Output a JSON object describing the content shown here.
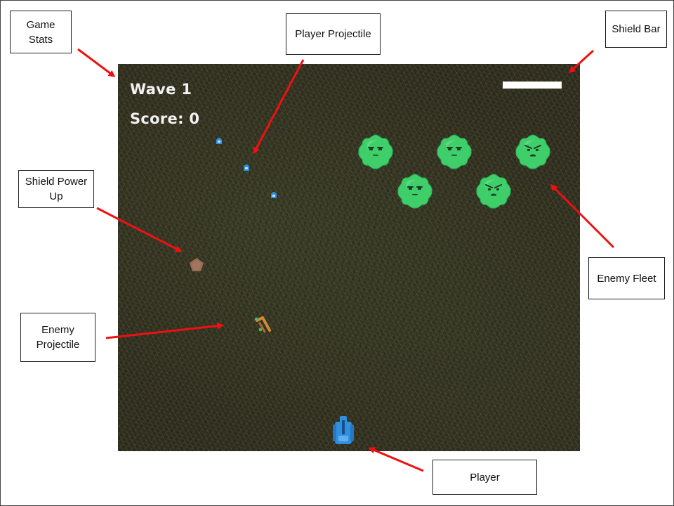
{
  "hud": {
    "wave_label": "Wave 1",
    "score_label": "Score: 0",
    "shield_level": 1.0
  },
  "annotations": {
    "game_stats": "Game Stats",
    "player_projectile": "Player Projectile",
    "shield_bar": "Shield Bar",
    "shield_power_up": "Shield Power Up",
    "enemy_fleet": "Enemy Fleet",
    "enemy_projectile": "Enemy Projectile",
    "player": "Player"
  },
  "colors": {
    "enemy_fill": "#3fcf6a",
    "enemy_dark": "#2aa34f",
    "player_blue": "#2f8fe0",
    "arrow_red": "#ee1111",
    "powerup_brown": "#9a6a52",
    "hud_white": "#ffffff"
  },
  "icons": {
    "enemy": "green-blob-enemy-icon",
    "player": "blue-tank-icon",
    "powerup": "pentagon-shield-icon",
    "player_projectile": "blue-bullet-icon",
    "enemy_projectile": "orange-green-shot-icon"
  }
}
